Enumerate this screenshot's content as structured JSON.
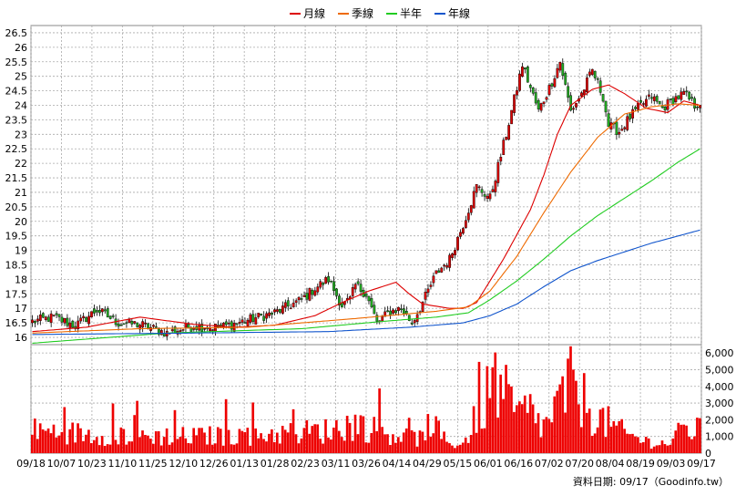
{
  "chart_data": [
    {
      "type": "candlestick",
      "title": "",
      "legend": {
        "placement": "top-center",
        "items": [
          {
            "label": "月線",
            "color": "#dd0000"
          },
          {
            "label": "季線",
            "color": "#ee6a00"
          },
          {
            "label": "半年",
            "color": "#22cc22"
          },
          {
            "label": "年線",
            "color": "#1155cc"
          }
        ]
      },
      "grid": true,
      "y_axis": {
        "position": "left",
        "ylim": [
          15.75,
          26.75
        ],
        "ticks": [
          "26.5",
          "26",
          "25.5",
          "25",
          "24.5",
          "24",
          "23.5",
          "23",
          "22.5",
          "22",
          "21.5",
          "21",
          "20.5",
          "20",
          "19.5",
          "19",
          "18.5",
          "18",
          "17.5",
          "17",
          "16.5",
          "16"
        ]
      },
      "colors": {
        "up": "#dd0000",
        "down": "#22aa22",
        "ma_month": "#dd0000",
        "ma_quarter": "#ee6a00",
        "ma_half": "#22cc22",
        "ma_year": "#1155cc"
      },
      "ma_series": [
        {
          "name": "月線",
          "x": [
            0,
            20,
            40,
            60,
            75,
            90,
            105,
            115,
            125,
            135,
            140,
            145,
            155,
            160,
            165,
            175,
            185,
            190,
            195,
            200,
            208,
            214,
            220,
            228,
            236,
            242,
            248
          ],
          "y": [
            16.2,
            16.35,
            16.7,
            16.45,
            16.35,
            16.42,
            16.75,
            17.2,
            17.6,
            17.9,
            17.5,
            17.15,
            17.0,
            17.0,
            17.2,
            18.7,
            20.4,
            21.6,
            23.0,
            24.0,
            24.55,
            24.7,
            24.4,
            23.9,
            23.75,
            24.15,
            24.0
          ]
        },
        {
          "name": "季線",
          "x": [
            0,
            40,
            80,
            120,
            150,
            162,
            170,
            180,
            190,
            200,
            210,
            220,
            230,
            240,
            248
          ],
          "y": [
            16.15,
            16.3,
            16.35,
            16.65,
            16.9,
            17.05,
            17.6,
            18.8,
            20.3,
            21.7,
            22.9,
            23.7,
            23.95,
            24.05,
            24.0
          ]
        },
        {
          "name": "半年",
          "x": [
            0,
            50,
            100,
            130,
            150,
            162,
            170,
            180,
            190,
            200,
            210,
            220,
            230,
            240,
            248
          ],
          "y": [
            15.8,
            16.15,
            16.3,
            16.55,
            16.7,
            16.85,
            17.3,
            17.95,
            18.7,
            19.5,
            20.2,
            20.8,
            21.4,
            22.05,
            22.5
          ]
        },
        {
          "name": "年線",
          "x": [
            0,
            60,
            110,
            140,
            160,
            170,
            180,
            190,
            200,
            210,
            220,
            230,
            240,
            248
          ],
          "y": [
            16.1,
            16.15,
            16.2,
            16.35,
            16.5,
            16.75,
            17.15,
            17.75,
            18.3,
            18.65,
            18.95,
            19.25,
            19.5,
            19.7
          ]
        }
      ],
      "price_anchors": {
        "x": [
          0,
          8,
          16,
          24,
          32,
          40,
          50,
          60,
          70,
          80,
          90,
          100,
          105,
          110,
          115,
          118,
          120,
          124,
          128,
          133,
          137,
          141,
          145,
          150,
          155,
          160,
          165,
          170,
          176,
          182,
          188,
          192,
          196,
          200,
          204,
          208,
          212,
          214,
          218,
          222,
          226,
          230,
          234,
          238,
          242,
          246,
          248
        ],
        "y": [
          16.55,
          16.7,
          16.4,
          16.95,
          16.5,
          16.45,
          16.15,
          16.4,
          16.35,
          16.6,
          16.85,
          17.3,
          17.7,
          18.0,
          17.1,
          17.3,
          17.8,
          17.5,
          16.5,
          16.9,
          17.0,
          16.5,
          17.2,
          18.2,
          18.7,
          19.9,
          21.2,
          20.8,
          23.0,
          25.4,
          23.8,
          24.6,
          25.5,
          23.8,
          24.4,
          25.2,
          24.3,
          23.3,
          23.1,
          23.6,
          24.0,
          24.3,
          23.9,
          24.2,
          24.4,
          24.0,
          24.1
        ]
      },
      "n_bars": 249
    },
    {
      "type": "bar",
      "ylabel_position": "right",
      "ylim": [
        0,
        6500
      ],
      "ticks": [
        "6,000",
        "5,000",
        "4,000",
        "3,000",
        "2,000",
        "1,000",
        "0"
      ],
      "color": "#ee0000",
      "volume_anchors": {
        "x": [
          0,
          30,
          60,
          90,
          110,
          120,
          128,
          150,
          160,
          172,
          180,
          185,
          190,
          200,
          210,
          220,
          228,
          236,
          242,
          248
        ],
        "y": [
          1500,
          1200,
          1100,
          1300,
          1500,
          2000,
          1500,
          800,
          600,
          4800,
          2500,
          2800,
          1700,
          4500,
          2400,
          1300,
          800,
          600,
          1600,
          1500
        ]
      }
    }
  ],
  "x_ticks": [
    "09/18",
    "10/07",
    "10/23",
    "11/10",
    "11/25",
    "12/10",
    "12/26",
    "01/13",
    "01/28",
    "02/23",
    "03/11",
    "03/26",
    "04/14",
    "04/29",
    "05/15",
    "06/01",
    "06/16",
    "07/02",
    "07/20",
    "08/04",
    "08/19",
    "09/03",
    "09/17"
  ],
  "source_note": "資料日期: 09/17（Goodinfo.tw）"
}
